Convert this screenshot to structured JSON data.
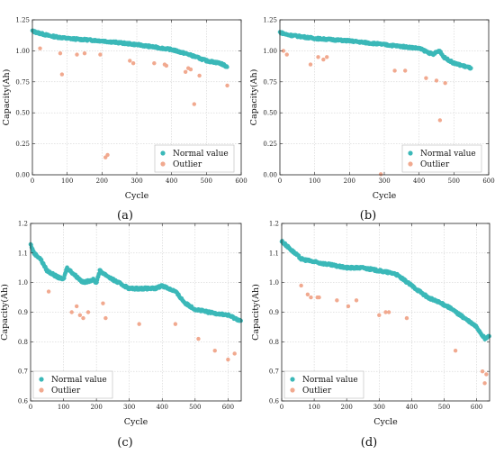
{
  "figure": {
    "panel_labels": [
      "(a)",
      "(b)",
      "(c)",
      "(d)"
    ]
  },
  "colors": {
    "normal": "#3bb8b8",
    "outlier": "#f1a98f",
    "grid": "#c8c8c8"
  },
  "chart_data": [
    {
      "type": "scatter",
      "label": "(a)",
      "xlabel": "Cycle",
      "ylabel": "Capacity(Ah)",
      "xlim": [
        0,
        600
      ],
      "ylim": [
        0,
        1.25
      ],
      "xticks": [
        0,
        100,
        200,
        300,
        400,
        500,
        600
      ],
      "yticks": [
        0,
        0.25,
        0.5,
        0.75,
        1.0,
        1.25
      ],
      "ytick_decimals": 2,
      "grid": true,
      "legend_position": "lower-right",
      "series": [
        {
          "name": "Normal value",
          "role": "normal",
          "trend": [
            [
              0,
              1.16
            ],
            [
              10,
              1.15
            ],
            [
              50,
              1.12
            ],
            [
              100,
              1.1
            ],
            [
              200,
              1.08
            ],
            [
              300,
              1.05
            ],
            [
              400,
              1.01
            ],
            [
              450,
              0.97
            ],
            [
              500,
              0.92
            ],
            [
              540,
              0.9
            ],
            [
              560,
              0.87
            ]
          ]
        },
        {
          "name": "Outlier",
          "role": "outlier",
          "x": [
            22,
            80,
            85,
            128,
            150,
            195,
            210,
            216,
            280,
            290,
            350,
            380,
            385,
            440,
            448,
            455,
            465,
            480,
            560
          ],
          "y": [
            1.02,
            0.98,
            0.81,
            0.97,
            0.98,
            0.97,
            0.14,
            0.16,
            0.92,
            0.9,
            0.9,
            0.89,
            0.88,
            0.83,
            0.86,
            0.85,
            0.57,
            0.8,
            0.72
          ]
        }
      ]
    },
    {
      "type": "scatter",
      "label": "(b)",
      "xlabel": "Cycle",
      "ylabel": "Capacity(Ah)",
      "xlim": [
        0,
        600
      ],
      "ylim": [
        0,
        1.25
      ],
      "xticks": [
        0,
        100,
        200,
        300,
        400,
        500,
        600
      ],
      "yticks": [
        0,
        0.25,
        0.5,
        0.75,
        1.0,
        1.25
      ],
      "ytick_decimals": 2,
      "grid": true,
      "legend_position": "lower-right",
      "series": [
        {
          "name": "Normal value",
          "role": "normal",
          "trend": [
            [
              0,
              1.15
            ],
            [
              20,
              1.13
            ],
            [
              100,
              1.1
            ],
            [
              200,
              1.08
            ],
            [
              300,
              1.05
            ],
            [
              400,
              1.02
            ],
            [
              440,
              0.97
            ],
            [
              450,
              0.99
            ],
            [
              460,
              1.0
            ],
            [
              470,
              0.95
            ],
            [
              500,
              0.9
            ],
            [
              550,
              0.86
            ]
          ]
        },
        {
          "name": "Outlier",
          "role": "outlier",
          "x": [
            10,
            20,
            88,
            110,
            125,
            135,
            290,
            330,
            360,
            420,
            450,
            460,
            475
          ],
          "y": [
            1.0,
            0.97,
            0.89,
            0.95,
            0.93,
            0.95,
            0.005,
            0.84,
            0.84,
            0.78,
            0.76,
            0.44,
            0.74
          ]
        }
      ]
    },
    {
      "type": "scatter",
      "label": "(c)",
      "xlabel": "Cycle",
      "ylabel": "Capacity(Ah)",
      "xlim": [
        0,
        640
      ],
      "ylim": [
        0.6,
        1.2
      ],
      "xticks": [
        0,
        100,
        200,
        300,
        400,
        500,
        600
      ],
      "yticks": [
        0.6,
        0.7,
        0.8,
        0.9,
        1.0,
        1.1,
        1.2
      ],
      "ytick_decimals": 1,
      "grid": true,
      "legend_position": "lower-left",
      "series": [
        {
          "name": "Normal value",
          "role": "normal",
          "trend": [
            [
              0,
              1.13
            ],
            [
              10,
              1.1
            ],
            [
              30,
              1.08
            ],
            [
              50,
              1.04
            ],
            [
              80,
              1.02
            ],
            [
              100,
              1.01
            ],
            [
              110,
              1.05
            ],
            [
              140,
              1.02
            ],
            [
              160,
              1.0
            ],
            [
              190,
              1.01
            ],
            [
              200,
              1.0
            ],
            [
              210,
              1.04
            ],
            [
              250,
              1.01
            ],
            [
              300,
              0.98
            ],
            [
              350,
              0.98
            ],
            [
              380,
              0.98
            ],
            [
              400,
              0.99
            ],
            [
              440,
              0.97
            ],
            [
              470,
              0.93
            ],
            [
              500,
              0.91
            ],
            [
              540,
              0.9
            ],
            [
              600,
              0.89
            ],
            [
              640,
              0.87
            ]
          ]
        },
        {
          "name": "Outlier",
          "role": "outlier",
          "x": [
            55,
            125,
            140,
            150,
            160,
            175,
            220,
            228,
            330,
            440,
            510,
            560,
            600,
            620
          ],
          "y": [
            0.97,
            0.9,
            0.92,
            0.89,
            0.88,
            0.9,
            0.93,
            0.88,
            0.86,
            0.86,
            0.81,
            0.77,
            0.74,
            0.76
          ]
        }
      ]
    },
    {
      "type": "scatter",
      "label": "(d)",
      "xlabel": "Cycle",
      "ylabel": "Capacity(Ah)",
      "xlim": [
        0,
        640
      ],
      "ylim": [
        0.6,
        1.2
      ],
      "xticks": [
        0,
        100,
        200,
        300,
        400,
        500,
        600
      ],
      "yticks": [
        0.6,
        0.7,
        0.8,
        0.9,
        1.0,
        1.1,
        1.2
      ],
      "ytick_decimals": 1,
      "grid": true,
      "legend_position": "lower-left",
      "series": [
        {
          "name": "Normal value",
          "role": "normal",
          "trend": [
            [
              0,
              1.14
            ],
            [
              30,
              1.11
            ],
            [
              60,
              1.08
            ],
            [
              100,
              1.07
            ],
            [
              150,
              1.06
            ],
            [
              200,
              1.05
            ],
            [
              250,
              1.05
            ],
            [
              300,
              1.04
            ],
            [
              350,
              1.03
            ],
            [
              400,
              0.99
            ],
            [
              450,
              0.95
            ],
            [
              490,
              0.93
            ],
            [
              510,
              0.92
            ],
            [
              550,
              0.89
            ],
            [
              600,
              0.85
            ],
            [
              625,
              0.81
            ],
            [
              640,
              0.82
            ]
          ]
        },
        {
          "name": "Outlier",
          "role": "outlier",
          "x": [
            60,
            80,
            90,
            110,
            115,
            170,
            205,
            230,
            300,
            320,
            330,
            385,
            535,
            618,
            625,
            630
          ],
          "y": [
            0.99,
            0.96,
            0.95,
            0.95,
            0.95,
            0.94,
            0.92,
            0.94,
            0.89,
            0.9,
            0.9,
            0.88,
            0.77,
            0.7,
            0.66,
            0.69
          ]
        }
      ]
    }
  ]
}
